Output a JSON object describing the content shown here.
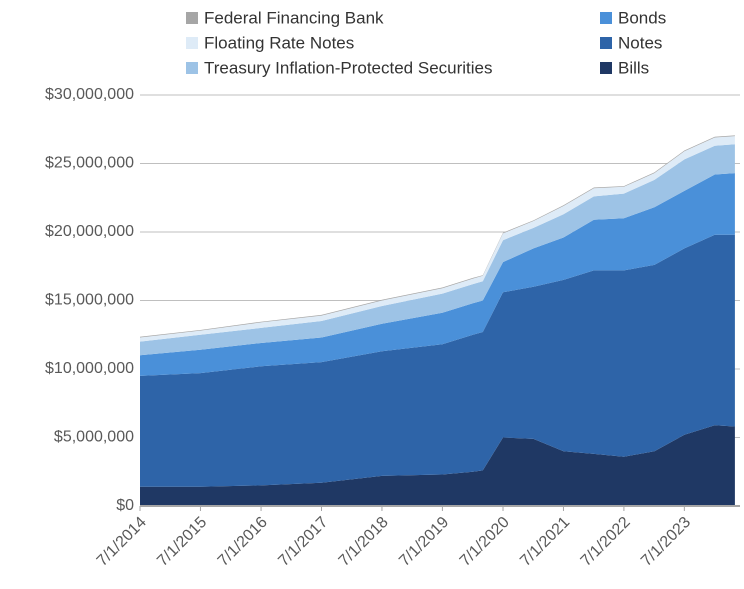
{
  "chart_data": {
    "type": "stacked_area",
    "x": [
      "7/1/2014",
      "7/1/2015",
      "7/1/2016",
      "7/1/2017",
      "7/1/2018",
      "7/1/2019",
      "1/1/2020",
      "3/1/2020",
      "7/1/2020",
      "1/1/2021",
      "7/1/2021",
      "1/1/2022",
      "7/1/2022",
      "1/1/2023",
      "7/1/2023",
      "1/1/2024",
      "5/1/2024"
    ],
    "series": [
      {
        "name": "Bills",
        "color": "#1f3864",
        "values": [
          1400000,
          1400000,
          1500000,
          1700000,
          2200000,
          2300000,
          2500000,
          2600000,
          5000000,
          4900000,
          4000000,
          3800000,
          3600000,
          4000000,
          5200000,
          5900000,
          5800000
        ]
      },
      {
        "name": "Notes",
        "color": "#2e64a8",
        "values": [
          8100000,
          8300000,
          8700000,
          8800000,
          9100000,
          9500000,
          10000000,
          10100000,
          10600000,
          11100000,
          12500000,
          13400000,
          13600000,
          13600000,
          13600000,
          13900000,
          14000000
        ]
      },
      {
        "name": "Bonds",
        "color": "#4a90d9",
        "values": [
          1500000,
          1700000,
          1700000,
          1800000,
          2000000,
          2300000,
          2300000,
          2300000,
          2200000,
          2800000,
          3100000,
          3700000,
          3800000,
          4200000,
          4200000,
          4400000,
          4500000
        ]
      },
      {
        "name": "Treasury Inflation-Protected Securities",
        "color": "#9dc3e6",
        "values": [
          1000000,
          1100000,
          1100000,
          1200000,
          1300000,
          1400000,
          1400000,
          1400000,
          1600000,
          1500000,
          1700000,
          1700000,
          1800000,
          2000000,
          2300000,
          2100000,
          2100000
        ]
      },
      {
        "name": "Floating Rate Notes",
        "color": "#deebf7",
        "values": [
          300000,
          300000,
          400000,
          400000,
          400000,
          400000,
          400000,
          400000,
          500000,
          500000,
          600000,
          600000,
          500000,
          500000,
          600000,
          600000,
          600000
        ]
      },
      {
        "name": "Federal Financing Bank",
        "color": "#a6a6a6",
        "values": [
          50000,
          50000,
          50000,
          50000,
          50000,
          50000,
          50000,
          50000,
          50000,
          50000,
          50000,
          50000,
          50000,
          50000,
          50000,
          50000,
          50000
        ]
      }
    ],
    "xlim": [
      "7/1/2014",
      "6/1/2024"
    ],
    "xticks": [
      "7/1/2014",
      "7/1/2015",
      "7/1/2016",
      "7/1/2017",
      "7/1/2018",
      "7/1/2019",
      "7/1/2020",
      "7/1/2021",
      "7/1/2022",
      "7/1/2023"
    ],
    "ylim": [
      0,
      30000000
    ],
    "yticks": [
      {
        "value": 0,
        "label": "$0"
      },
      {
        "value": 5000000,
        "label": "$5,000,000"
      },
      {
        "value": 10000000,
        "label": "$10,000,000"
      },
      {
        "value": 15000000,
        "label": "$15,000,000"
      },
      {
        "value": 20000000,
        "label": "$20,000,000"
      },
      {
        "value": 25000000,
        "label": "$25,000,000"
      },
      {
        "value": 30000000,
        "label": "$30,000,000"
      }
    ],
    "grid": true,
    "legend": "top"
  }
}
